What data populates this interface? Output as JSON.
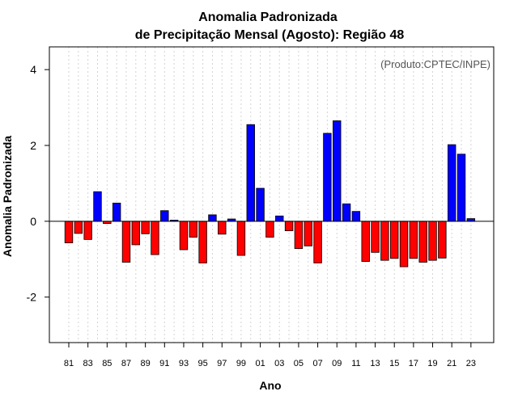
{
  "chart_data": {
    "type": "bar",
    "title": [
      "Anomalia Padronizada",
      "de Precipitação Mensal (Agosto): Região 48"
    ],
    "xlabel": "Ano",
    "ylabel": "Anomalia Padronizada",
    "credit": "(Produto:CPTEC/INPE)",
    "ylim": [
      -3.2,
      4.6
    ],
    "yticks": [
      -2,
      0,
      2,
      4
    ],
    "ytick_labels": [
      "-2",
      "0",
      "2",
      "4"
    ],
    "grid": "vertical dotted",
    "colors": {
      "positive": "#0000ff",
      "negative": "#ff0000",
      "zero_line": "#000000",
      "grid": "#d3d3d3"
    },
    "years": [
      1981,
      1982,
      1983,
      1984,
      1985,
      1986,
      1987,
      1988,
      1989,
      1990,
      1991,
      1992,
      1993,
      1994,
      1995,
      1996,
      1997,
      1998,
      1999,
      2000,
      2001,
      2002,
      2003,
      2004,
      2005,
      2006,
      2007,
      2008,
      2009,
      2010,
      2011,
      2012,
      2013,
      2014,
      2015,
      2016,
      2017,
      2018,
      2019,
      2020,
      2021,
      2022,
      2023
    ],
    "xtick_labels": [
      "81",
      "83",
      "85",
      "87",
      "89",
      "91",
      "93",
      "95",
      "97",
      "99",
      "01",
      "03",
      "05",
      "07",
      "09",
      "11",
      "13",
      "15",
      "17",
      "19",
      "21",
      "23"
    ],
    "values": [
      -0.57,
      -0.32,
      -0.48,
      0.78,
      -0.06,
      0.48,
      -1.08,
      -0.62,
      -0.33,
      -0.88,
      0.28,
      0.03,
      -0.75,
      -0.42,
      -1.1,
      0.17,
      -0.34,
      0.06,
      -0.9,
      2.55,
      0.87,
      -0.42,
      0.14,
      -0.25,
      -0.72,
      -0.65,
      -1.1,
      2.32,
      2.65,
      0.46,
      0.26,
      -1.06,
      -0.82,
      -1.03,
      -0.98,
      -1.2,
      -0.98,
      -1.08,
      -1.03,
      -0.97,
      2.02,
      1.77,
      0.07
    ]
  }
}
